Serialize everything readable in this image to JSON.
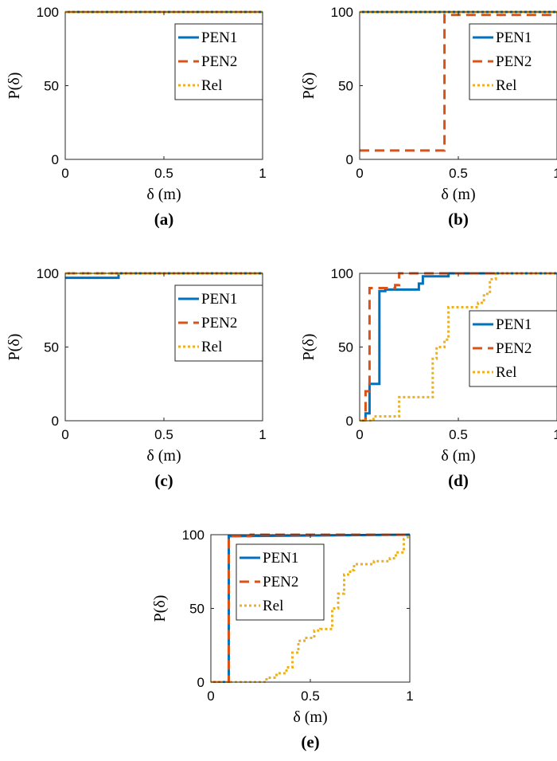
{
  "colors": {
    "PEN1": "#0072BD",
    "PEN2": "#D95319",
    "Rel": "#EDB120"
  },
  "chart_data": [
    {
      "type": "line",
      "panel_label": "(a)",
      "xlabel": "δ (m)",
      "ylabel": "P(δ)",
      "xlim": [
        0,
        1
      ],
      "ylim": [
        0,
        100
      ],
      "xticks": [
        "0",
        "0.5",
        "1"
      ],
      "yticks": [
        "0",
        "50",
        "100"
      ],
      "legend_position": "top-right",
      "series": [
        {
          "name": "PEN1",
          "x": [
            0,
            1
          ],
          "y": [
            100,
            100
          ]
        },
        {
          "name": "PEN2",
          "x": [
            0,
            1
          ],
          "y": [
            100,
            100
          ]
        },
        {
          "name": "Rel",
          "x": [
            0,
            1
          ],
          "y": [
            100,
            100
          ]
        }
      ]
    },
    {
      "type": "line",
      "panel_label": "(b)",
      "xlabel": "δ (m)",
      "ylabel": "P(δ)",
      "xlim": [
        0,
        1
      ],
      "ylim": [
        0,
        100
      ],
      "xticks": [
        "0",
        "0.5",
        "1"
      ],
      "yticks": [
        "0",
        "50",
        "100"
      ],
      "legend_position": "top-right",
      "series": [
        {
          "name": "PEN1",
          "x": [
            0,
            1
          ],
          "y": [
            100,
            100
          ]
        },
        {
          "name": "PEN2",
          "x": [
            0,
            0.43,
            0.43,
            1
          ],
          "y": [
            6,
            6,
            98,
            98
          ]
        },
        {
          "name": "Rel",
          "x": [
            0,
            1
          ],
          "y": [
            100,
            100
          ]
        }
      ]
    },
    {
      "type": "line",
      "panel_label": "(c)",
      "xlabel": "δ (m)",
      "ylabel": "P(δ)",
      "xlim": [
        0,
        1
      ],
      "ylim": [
        0,
        100
      ],
      "xticks": [
        "0",
        "0.5",
        "1"
      ],
      "yticks": [
        "0",
        "50",
        "100"
      ],
      "legend_position": "top-right",
      "series": [
        {
          "name": "PEN1",
          "x": [
            0,
            0.27,
            0.27,
            1
          ],
          "y": [
            97,
            97,
            100,
            100
          ]
        },
        {
          "name": "PEN2",
          "x": [
            0,
            1
          ],
          "y": [
            100,
            100
          ]
        },
        {
          "name": "Rel",
          "x": [
            0,
            1
          ],
          "y": [
            100,
            100
          ]
        }
      ]
    },
    {
      "type": "line",
      "panel_label": "(d)",
      "xlabel": "δ (m)",
      "ylabel": "P(δ)",
      "xlim": [
        0,
        1
      ],
      "ylim": [
        0,
        100
      ],
      "xticks": [
        "0",
        "0.5",
        "1"
      ],
      "yticks": [
        "0",
        "50",
        "100"
      ],
      "legend_position": "right",
      "series": [
        {
          "name": "PEN1",
          "x": [
            0,
            0.03,
            0.03,
            0.05,
            0.05,
            0.1,
            0.1,
            0.13,
            0.13,
            0.3,
            0.3,
            0.32,
            0.32,
            0.45,
            0.45,
            1
          ],
          "y": [
            0,
            0,
            5,
            5,
            25,
            25,
            88,
            88,
            89,
            89,
            93,
            93,
            98,
            98,
            100,
            100
          ]
        },
        {
          "name": "PEN2",
          "x": [
            0,
            0.03,
            0.03,
            0.05,
            0.05,
            0.18,
            0.18,
            0.2,
            0.2,
            1
          ],
          "y": [
            0,
            0,
            20,
            20,
            90,
            90,
            92,
            92,
            100,
            100
          ]
        },
        {
          "name": "Rel",
          "x": [
            0,
            0.07,
            0.07,
            0.2,
            0.2,
            0.37,
            0.37,
            0.39,
            0.39,
            0.43,
            0.43,
            0.45,
            0.45,
            0.6,
            0.6,
            0.63,
            0.63,
            0.66,
            0.66,
            0.69,
            0.69,
            1
          ],
          "y": [
            0,
            0,
            3,
            3,
            16,
            16,
            42,
            42,
            50,
            50,
            55,
            55,
            77,
            77,
            80,
            80,
            86,
            86,
            96,
            96,
            100,
            100
          ]
        }
      ]
    },
    {
      "type": "line",
      "panel_label": "(e)",
      "xlabel": "δ (m)",
      "ylabel": "P(δ)",
      "xlim": [
        0,
        1
      ],
      "ylim": [
        0,
        100
      ],
      "xticks": [
        "0",
        "0.5",
        "1"
      ],
      "yticks": [
        "0",
        "50",
        "100"
      ],
      "legend_position": "top-left",
      "series": [
        {
          "name": "PEN1",
          "x": [
            0,
            0.09,
            0.09,
            1
          ],
          "y": [
            0,
            0,
            99,
            100
          ]
        },
        {
          "name": "PEN2",
          "x": [
            0,
            0.09,
            0.09,
            0.2,
            0.2,
            1
          ],
          "y": [
            0,
            0,
            99,
            99,
            100,
            100
          ]
        },
        {
          "name": "Rel",
          "x": [
            0,
            0.28,
            0.28,
            0.33,
            0.33,
            0.38,
            0.38,
            0.41,
            0.41,
            0.44,
            0.44,
            0.47,
            0.47,
            0.52,
            0.52,
            0.55,
            0.55,
            0.61,
            0.61,
            0.64,
            0.64,
            0.67,
            0.67,
            0.7,
            0.7,
            0.72,
            0.72,
            0.78,
            0.78,
            0.82,
            0.82,
            0.9,
            0.9,
            0.93,
            0.93,
            0.97,
            0.97,
            1
          ],
          "y": [
            0,
            0,
            3,
            3,
            6,
            6,
            10,
            10,
            20,
            20,
            28,
            28,
            30,
            30,
            35,
            35,
            36,
            36,
            50,
            50,
            60,
            60,
            73,
            73,
            76,
            76,
            80,
            80,
            80,
            80,
            82,
            82,
            84,
            84,
            88,
            88,
            97,
            99
          ]
        }
      ]
    }
  ]
}
